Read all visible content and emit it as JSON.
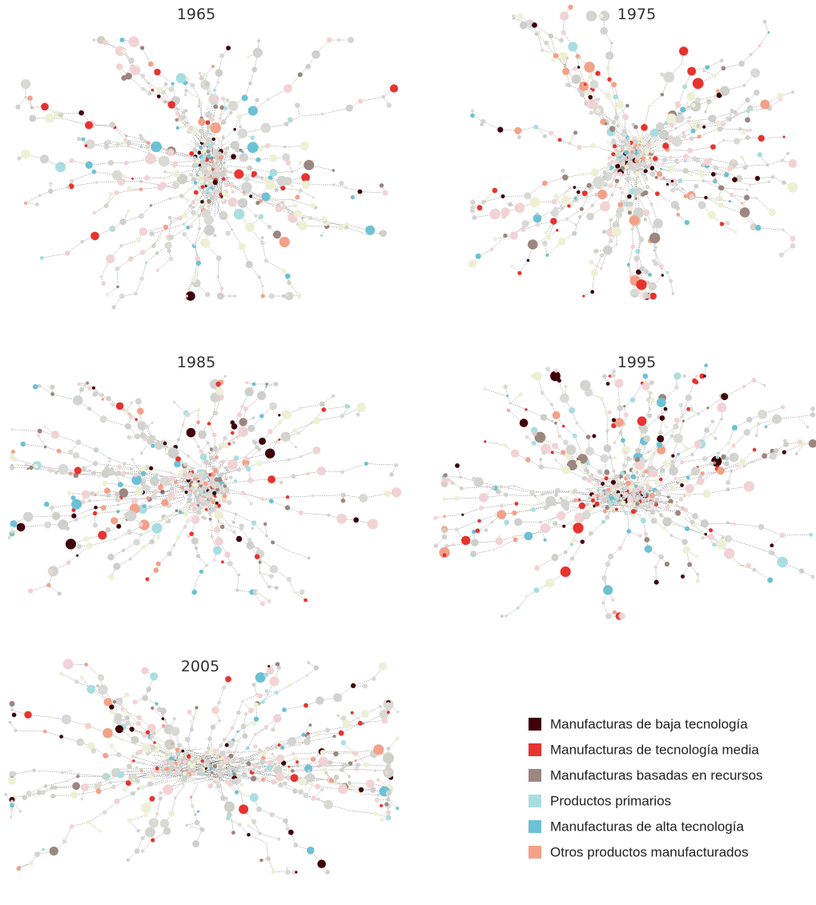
{
  "panels": [
    {
      "title": "1965"
    },
    {
      "title": "1975"
    },
    {
      "title": "1985"
    },
    {
      "title": "1995"
    },
    {
      "title": "2005"
    }
  ],
  "legend": [
    {
      "label": "Manufacturas de baja tecnología",
      "color": "#3f0008"
    },
    {
      "label": "Manufacturas de tecnología media",
      "color": "#e8332f"
    },
    {
      "label": "Manufacturas basadas en recursos",
      "color": "#9c8780"
    },
    {
      "label": "Productos primarios",
      "color": "#a9dee1"
    },
    {
      "label": "Manufacturas de alta tecnología",
      "color": "#6cc1d4"
    },
    {
      "label": "Otros productos manufacturados",
      "color": "#f3a188"
    }
  ]
}
